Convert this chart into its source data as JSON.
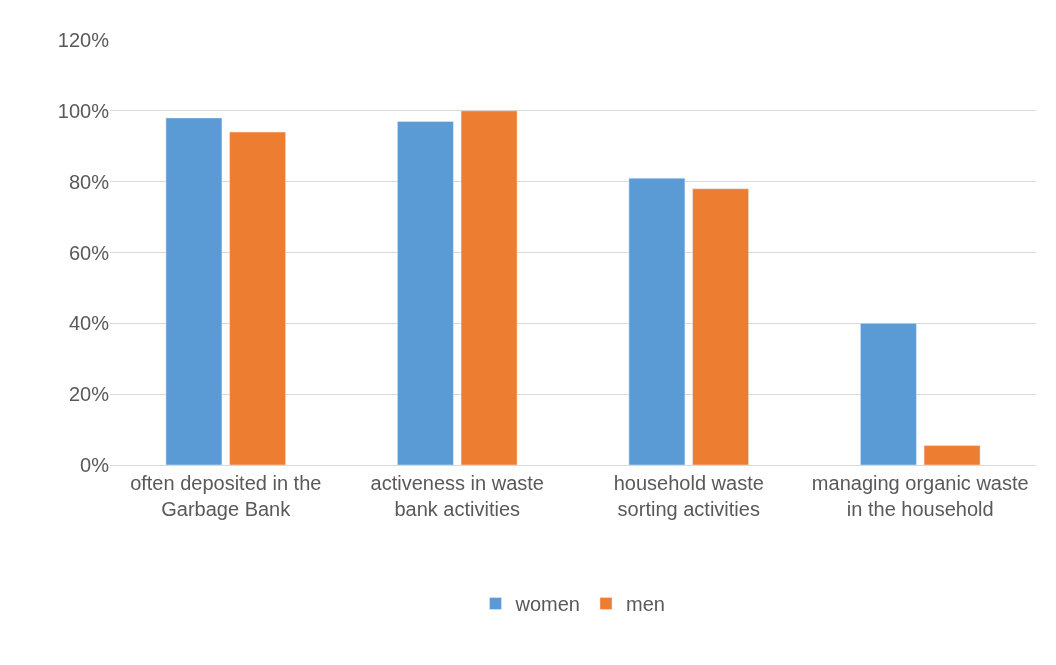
{
  "chart_data": {
    "type": "bar",
    "categories": [
      "often deposited in the Garbage Bank",
      "activeness in waste bank activities",
      "household waste sorting activities",
      "managing organic waste in the household"
    ],
    "series": [
      {
        "name": "women",
        "color": "#5b9bd5",
        "values": [
          98,
          97,
          81,
          40
        ]
      },
      {
        "name": "men",
        "color": "#ed7d31",
        "values": [
          94,
          100,
          78,
          5.5
        ]
      }
    ],
    "ylim": [
      0,
      120
    ],
    "yticks": [
      {
        "value": 0,
        "label": "0%"
      },
      {
        "value": 20,
        "label": "20%"
      },
      {
        "value": 40,
        "label": "40%"
      },
      {
        "value": 60,
        "label": "60%"
      },
      {
        "value": 80,
        "label": "80%"
      },
      {
        "value": 100,
        "label": "100%"
      },
      {
        "value": 120,
        "label": "120%"
      }
    ],
    "grid": "y",
    "legend": "bottom"
  }
}
